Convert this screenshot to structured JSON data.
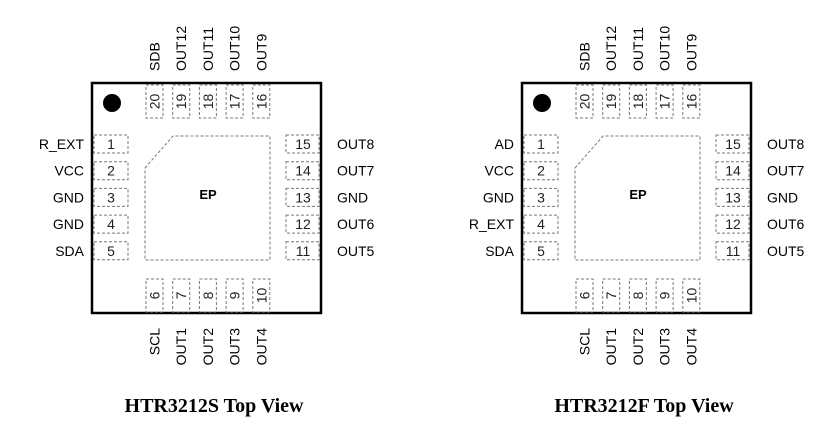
{
  "chips": [
    {
      "title": "HTR3212S Top View",
      "exposed_pad": "EP",
      "pins": {
        "1": "R_EXT",
        "2": "VCC",
        "3": "GND",
        "4": "GND",
        "5": "SDA",
        "6": "SCL",
        "7": "OUT1",
        "8": "OUT2",
        "9": "OUT3",
        "10": "OUT4",
        "11": "OUT5",
        "12": "OUT6",
        "13": "GND",
        "14": "OUT7",
        "15": "OUT8",
        "16": "OUT9",
        "17": "OUT10",
        "18": "OUT11",
        "19": "OUT12",
        "20": "SDB"
      }
    },
    {
      "title": "HTR3212F Top View",
      "exposed_pad": "EP",
      "pins": {
        "1": "AD",
        "2": "VCC",
        "3": "GND",
        "4": "R_EXT",
        "5": "SDA",
        "6": "SCL",
        "7": "OUT1",
        "8": "OUT2",
        "9": "OUT3",
        "10": "OUT4",
        "11": "OUT5",
        "12": "OUT6",
        "13": "GND",
        "14": "OUT7",
        "15": "OUT8",
        "16": "OUT9",
        "17": "OUT10",
        "18": "OUT11",
        "19": "OUT12",
        "20": "SDB"
      }
    }
  ]
}
